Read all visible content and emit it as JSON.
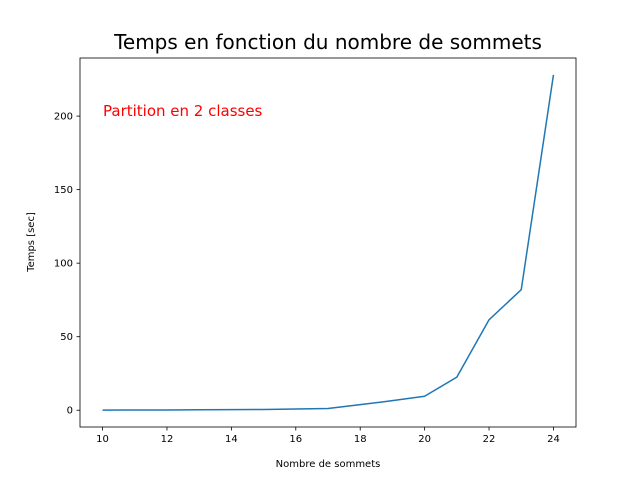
{
  "chart_data": {
    "type": "line",
    "title": "Temps en fonction du nombre de sommets",
    "xlabel": "Nombre de sommets",
    "ylabel": "Temps [sec]",
    "annotation": {
      "text": "Partition en 2 classes",
      "color": "#ff0000"
    },
    "xlim": [
      9.3,
      24.7
    ],
    "ylim": [
      -11.4,
      239.5
    ],
    "xticks": [
      10,
      12,
      14,
      16,
      18,
      20,
      22,
      24
    ],
    "yticks": [
      0,
      50,
      100,
      150,
      200
    ],
    "grid": false,
    "series": [
      {
        "color": "#1f77b4",
        "x": [
          10,
          11,
          12,
          13,
          14,
          15,
          16,
          17,
          18,
          19,
          20,
          21,
          22,
          23,
          24
        ],
        "y": [
          0.1,
          0.15,
          0.2,
          0.3,
          0.4,
          0.5,
          0.8,
          1.2,
          3.8,
          6.5,
          9.5,
          22.5,
          61.5,
          82,
          228
        ]
      }
    ]
  }
}
